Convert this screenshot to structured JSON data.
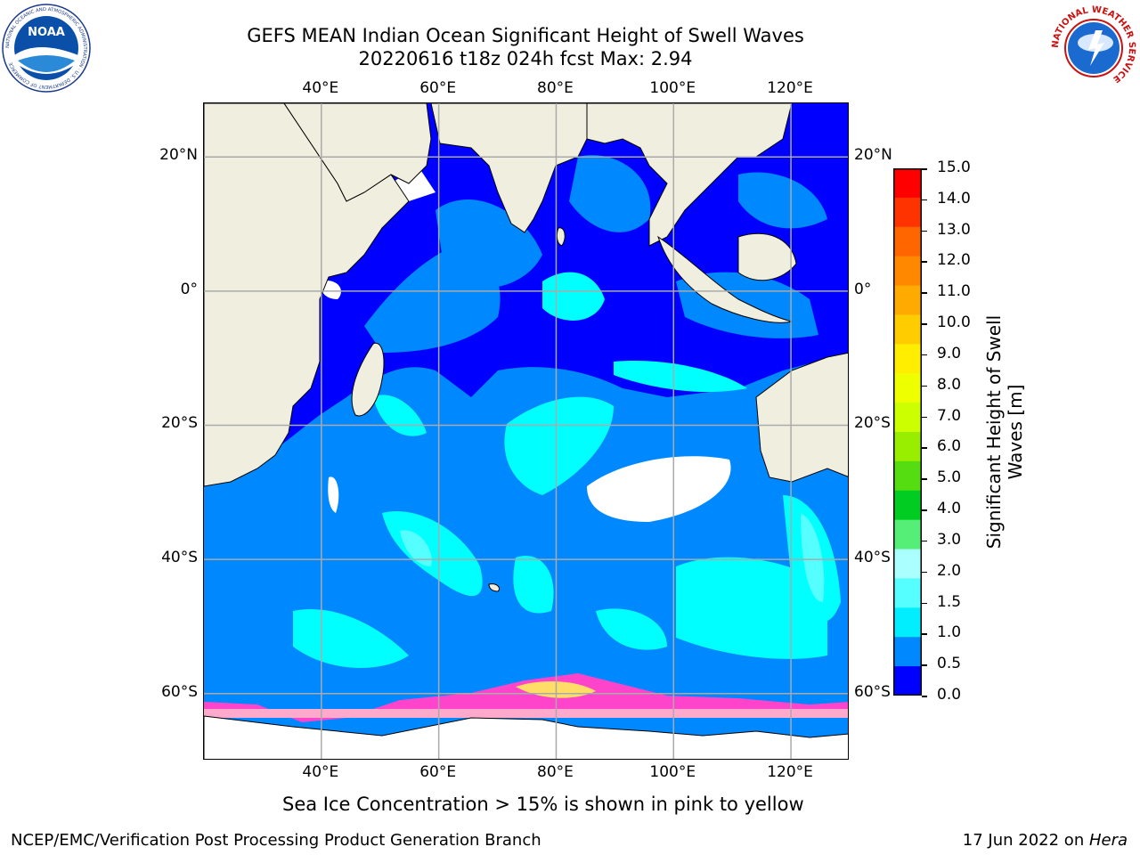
{
  "title": {
    "line1": "GEFS MEAN Indian Ocean Significant Height of Swell Waves",
    "line2": "20220616 t18z 024h fcst   Max: 2.94"
  },
  "map": {
    "lon_labels": [
      "40°E",
      "60°E",
      "80°E",
      "100°E",
      "120°E"
    ],
    "lat_labels": [
      "20°N",
      "0°",
      "20°S",
      "40°S",
      "60°S"
    ],
    "lon_range": [
      20,
      130
    ],
    "lat_range": [
      -70,
      28
    ],
    "grid": true
  },
  "colorbar": {
    "label_line1": "Significant Height of Swell",
    "label_line2": "Waves [m]",
    "ticks": [
      "15.0",
      "14.0",
      "13.0",
      "12.0",
      "11.0",
      "10.0",
      "9.0",
      "8.0",
      "7.0",
      "6.0",
      "5.0",
      "4.0",
      "3.0",
      "2.0",
      "1.5",
      "1.0",
      "0.5",
      "0.0"
    ],
    "colors": [
      "#ff0000",
      "#ff3300",
      "#ff6600",
      "#ff8800",
      "#ffaa00",
      "#ffcc00",
      "#ffee00",
      "#eeff00",
      "#ccff00",
      "#99ee00",
      "#55dd11",
      "#00cc22",
      "#55ee77",
      "#aaffff",
      "#55ffff",
      "#00eeff",
      "#0088ff",
      "#0000ff"
    ]
  },
  "logos": {
    "noaa_text": "NOAA",
    "noaa_ring": "NATIONAL OCEANIC AND ATMOSPHERIC ADMINISTRATION · U.S. DEPARTMENT OF COMMERCE",
    "nws_ring": "NATIONAL WEATHER SERVICE"
  },
  "footer": {
    "ice_note": "Sea Ice Concentration > 15% is shown in pink to yellow",
    "branch": "NCEP/EMC/Verification Post Processing Product Generation Branch",
    "date_prefix": "17 Jun 2022 on ",
    "machine": "Hera"
  }
}
